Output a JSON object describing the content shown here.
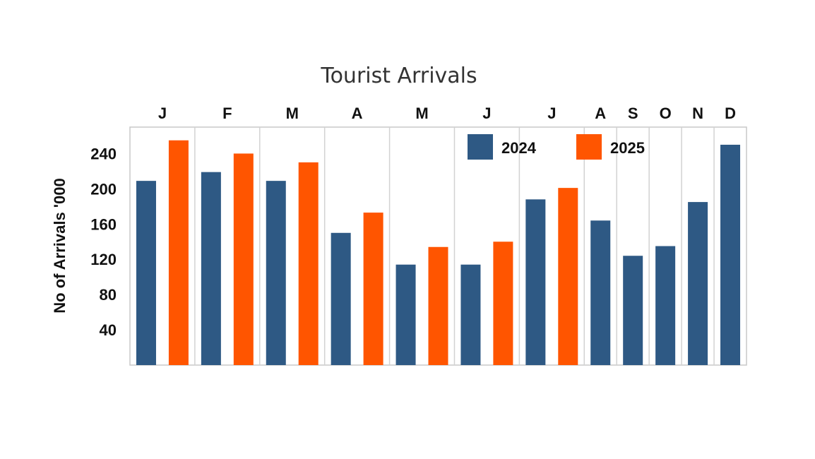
{
  "chart_data": {
    "type": "bar",
    "title": "Tourist Arrivals",
    "ylabel": "No of Arrivals '000",
    "xlabel": "",
    "categories": [
      "J",
      "F",
      "M",
      "A",
      "M",
      "J",
      "J",
      "A",
      "S",
      "O",
      "N",
      "D"
    ],
    "series": [
      {
        "name": "2024",
        "color": "#2e5984",
        "values": [
          209,
          219,
          209,
          150,
          114,
          114,
          188,
          164,
          124,
          135,
          185,
          250
        ]
      },
      {
        "name": "2025",
        "color": "#ff5500",
        "values": [
          255,
          240,
          230,
          173,
          134,
          140,
          201,
          null,
          null,
          null,
          null,
          null
        ]
      }
    ],
    "yticks": [
      40,
      80,
      120,
      160,
      200,
      240
    ],
    "ylim": [
      0,
      270
    ],
    "grid": "vertical category separators",
    "legend_position": "top-right inside plot",
    "category_labels_position": "top"
  }
}
